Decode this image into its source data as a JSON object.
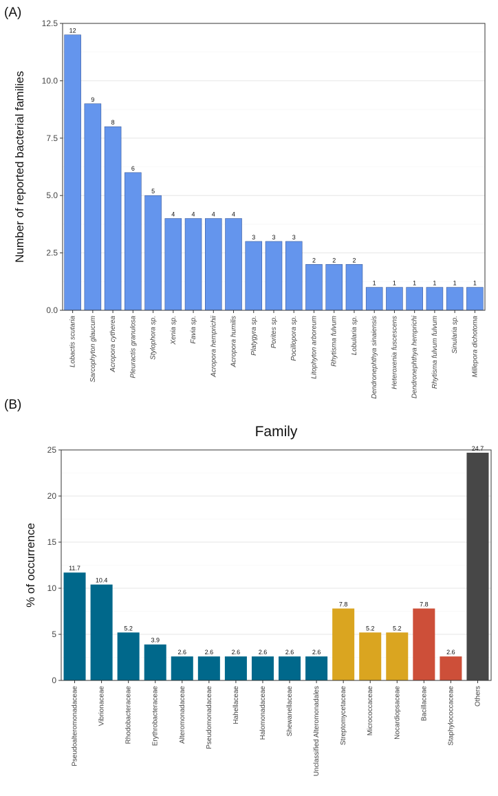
{
  "figure": {
    "panel_a_label": "(A)",
    "panel_b_label": "(B)"
  },
  "chart_data": [
    {
      "type": "bar",
      "panel": "(A)",
      "title": "",
      "xlabel": "",
      "ylabel": "Number of reported bacterial families",
      "ylim": [
        0,
        12.5
      ],
      "yticks": [
        0.0,
        2.5,
        5.0,
        7.5,
        10.0,
        12.5
      ],
      "ytick_labels": [
        "0.0",
        "2.5",
        "5.0",
        "7.5",
        "10.0",
        "12.5"
      ],
      "grid": true,
      "bar_color": "#6495ED",
      "italic_categories": true,
      "categories": [
        "Lobactis scutaria",
        "Sarcophyton glaucum",
        "Acropora cytherea",
        "Pleuractis granulosa",
        "Stylophora sp.",
        "Xenia sp.",
        "Favia sp.",
        "Acropora hemprichii",
        "Acropora humilis",
        "Platygyra sp.",
        "Porites sp.",
        "Pocillopora sp.",
        "Litophyton arboreum",
        "Rhytisma fulvum",
        "Lobularia sp.",
        "Dendronephthya sinaiensis",
        "Heteroxenia fuscescens",
        "Dendronephthya hemprichi",
        "Rhytisma fulvum fulvum",
        "Sinularia sp.",
        "Millepora dichotoma"
      ],
      "values": [
        12,
        9,
        8,
        6,
        5,
        4,
        4,
        4,
        4,
        3,
        3,
        3,
        2,
        2,
        2,
        1,
        1,
        1,
        1,
        1,
        1
      ],
      "data_labels": [
        "12",
        "9",
        "8",
        "6",
        "5",
        "4",
        "4",
        "4",
        "4",
        "3",
        "3",
        "3",
        "2",
        "2",
        "2",
        "1",
        "1",
        "1",
        "1",
        "1",
        "1"
      ]
    },
    {
      "type": "bar",
      "panel": "(B)",
      "title": "Family",
      "xlabel": "",
      "ylabel": "% of occurrence",
      "ylim": [
        0,
        25
      ],
      "yticks": [
        0,
        5,
        10,
        15,
        20,
        25
      ],
      "ytick_labels": [
        "0",
        "5",
        "10",
        "15",
        "20",
        "25"
      ],
      "grid": true,
      "italic_categories": false,
      "categories": [
        "Pseudoalteromonadaceae",
        "Vibrionaceae",
        "Rhodobacteraceae",
        "Erythrobacteraceae",
        "Alteromonadaceae",
        "Pseudomonadaceae",
        "Hahellaceae",
        "Halomonadaceae",
        "Shewanellaceae",
        "Unclassified Alteromonadales",
        "Streptomycetaceae",
        "Micrococcaceae",
        "Nocardiopsaceae",
        "Bacillaceae",
        "Staphylococcaceae",
        "Others"
      ],
      "values": [
        11.7,
        10.4,
        5.2,
        3.9,
        2.6,
        2.6,
        2.6,
        2.6,
        2.6,
        2.6,
        7.8,
        5.2,
        5.2,
        7.8,
        2.6,
        24.7
      ],
      "data_labels": [
        "11.7",
        "10.4",
        "5.2",
        "3.9",
        "2.6",
        "2.6",
        "2.6",
        "2.6",
        "2.6",
        "2.6",
        "7.8",
        "5.2",
        "5.2",
        "7.8",
        "2.6",
        "24.7"
      ],
      "colors": [
        "#00688B",
        "#00688B",
        "#00688B",
        "#00688B",
        "#00688B",
        "#00688B",
        "#00688B",
        "#00688B",
        "#00688B",
        "#00688B",
        "#DAA520",
        "#DAA520",
        "#DAA520",
        "#CD4F39",
        "#CD4F39",
        "#474747"
      ]
    }
  ]
}
